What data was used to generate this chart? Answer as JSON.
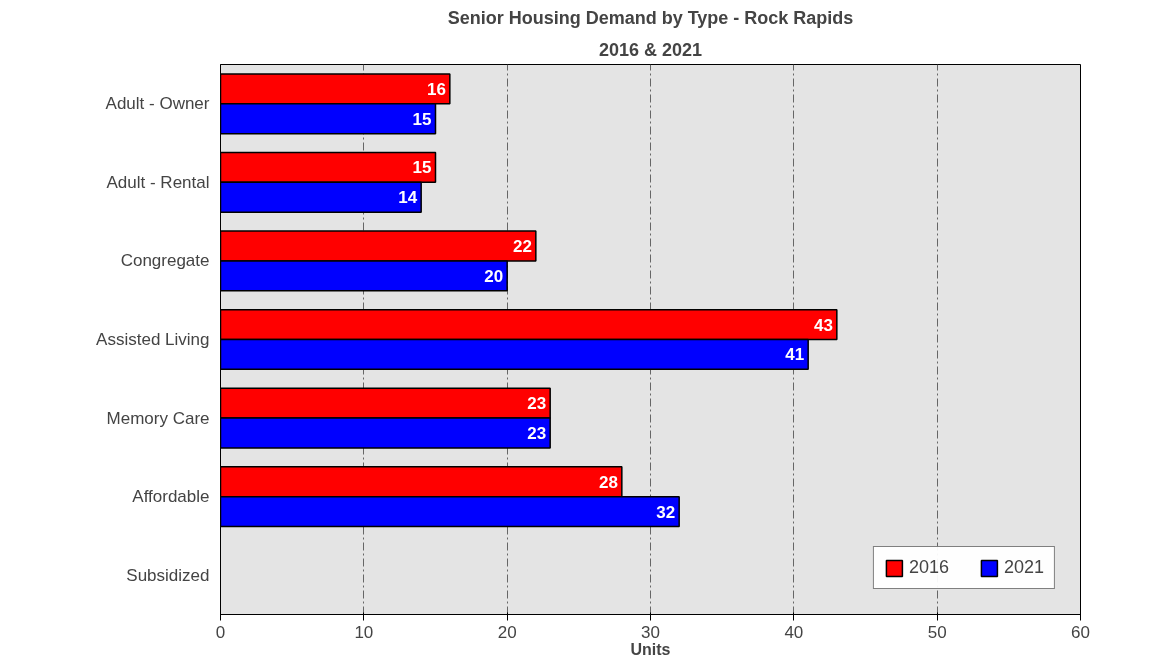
{
  "chart_data": {
    "type": "bar",
    "orientation": "horizontal",
    "title": "Senior Housing Demand by Type - Rock Rapids",
    "subtitle": "2016 & 2021",
    "xlabel": "Units",
    "categories": [
      "Adult - Owner",
      "Adult - Rental",
      "Congregate",
      "Assisted Living",
      "Memory Care",
      "Affordable",
      "Subsidized"
    ],
    "series": [
      {
        "name": "2016",
        "color": "#ff0000",
        "values": [
          16,
          15,
          22,
          43,
          23,
          28,
          null
        ]
      },
      {
        "name": "2021",
        "color": "#0000ff",
        "values": [
          15,
          14,
          20,
          41,
          23,
          32,
          null
        ]
      }
    ],
    "xlim": [
      0,
      60
    ],
    "xticks": [
      0,
      10,
      20,
      30,
      40,
      50,
      60
    ],
    "grid": "x",
    "legend": "bottom right",
    "data_labels": true
  }
}
